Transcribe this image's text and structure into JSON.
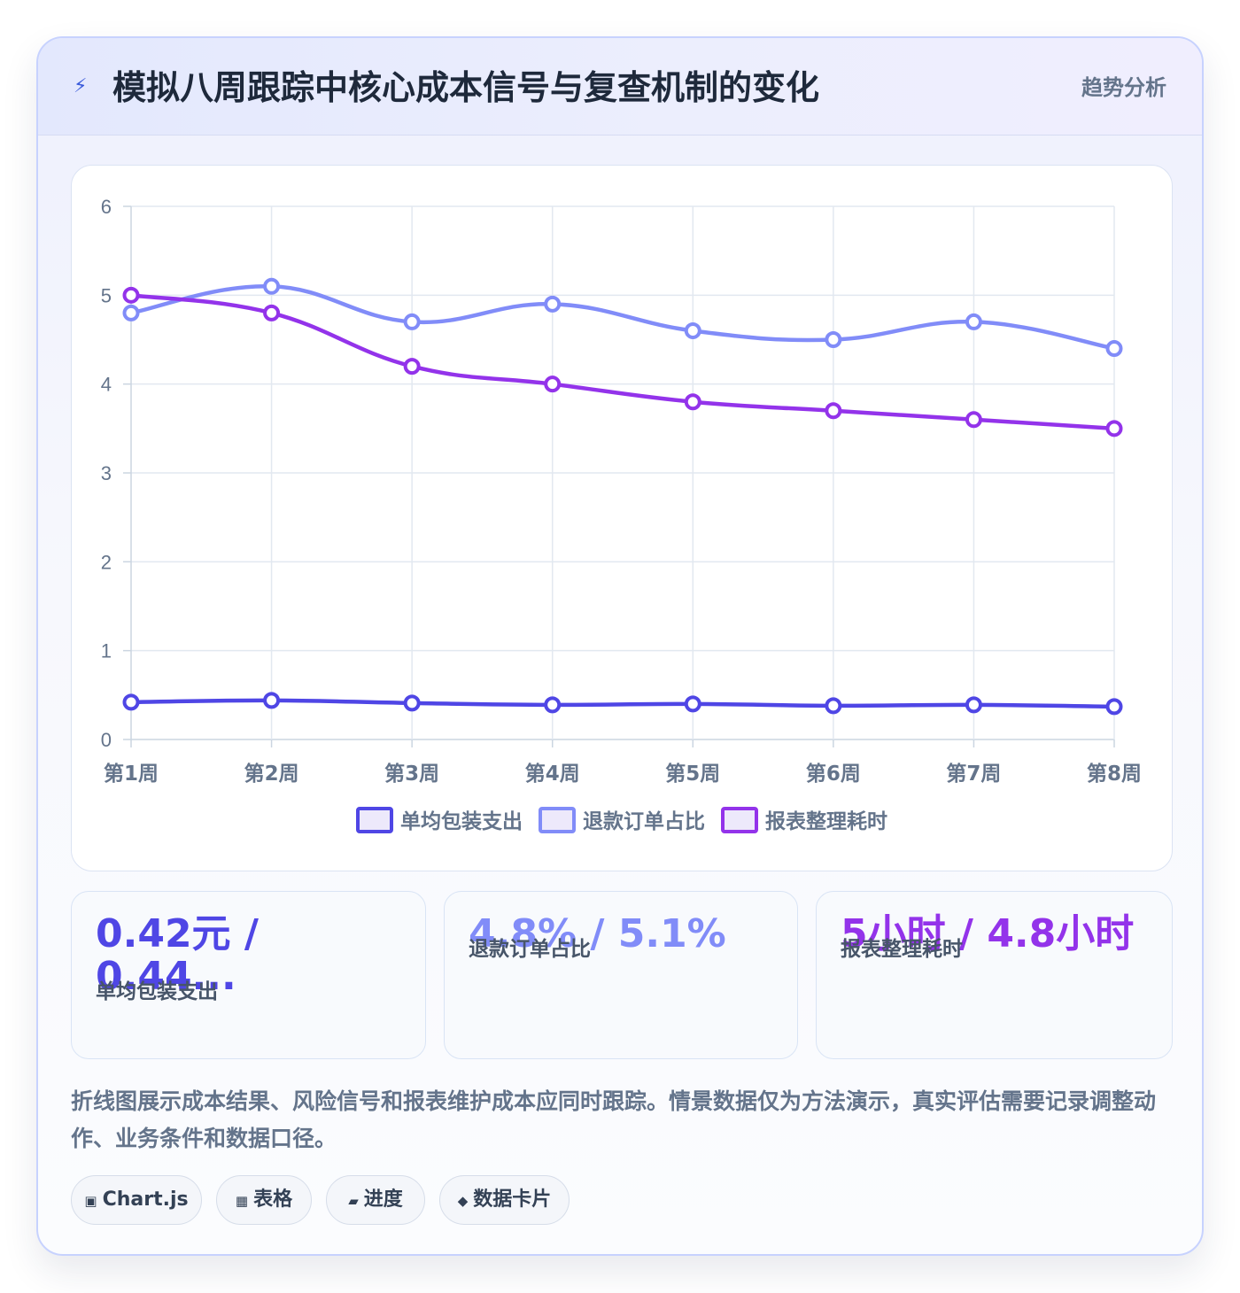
{
  "header": {
    "icon": "lightning-icon",
    "title": "模拟八周跟踪中核心成本信号与复查机制的变化",
    "tag": "趋势分析"
  },
  "chart_data": {
    "type": "line",
    "categories": [
      "第1周",
      "第2周",
      "第3周",
      "第4周",
      "第5周",
      "第6周",
      "第7周",
      "第8周"
    ],
    "series": [
      {
        "name": "单均包装支出",
        "color": "#4f46e5",
        "values": [
          0.42,
          0.44,
          0.41,
          0.39,
          0.4,
          0.38,
          0.39,
          0.37
        ]
      },
      {
        "name": "退款订单占比",
        "color": "#818cf8",
        "values": [
          4.8,
          5.1,
          4.7,
          4.9,
          4.6,
          4.5,
          4.7,
          4.4
        ]
      },
      {
        "name": "报表整理耗时",
        "color": "#9333ea",
        "values": [
          5.0,
          4.8,
          4.2,
          4.0,
          3.8,
          3.7,
          3.6,
          3.5
        ]
      }
    ],
    "yticks": [
      "0",
      "1",
      "2",
      "3",
      "4",
      "5",
      "6"
    ],
    "ylim": [
      0,
      6
    ],
    "grid": true,
    "legend_position": "bottom",
    "smooth": true
  },
  "stats": [
    {
      "value": "0.42元 / 0.44...",
      "label": "单均包装支出",
      "color": "#4f46e5"
    },
    {
      "value": "4.8% / 5.1%",
      "label": "退款订单占比",
      "color": "#818cf8"
    },
    {
      "value": "5小时 / 4.8小时",
      "label": "报表整理耗时",
      "color": "#9333ea"
    }
  ],
  "note": "折线图展示成本结果、风险信号和报表维护成本应同时跟踪。情景数据仅为方法演示，真实评估需要记录调整动作、业务条件和数据口径。",
  "chips": [
    {
      "icon": "chart-icon",
      "glyph": "▣",
      "label": "Chart.js"
    },
    {
      "icon": "table-icon",
      "glyph": "▦",
      "label": "表格"
    },
    {
      "icon": "progress-icon",
      "glyph": "▰",
      "label": "进度"
    },
    {
      "icon": "card-icon",
      "glyph": "◆",
      "label": "数据卡片"
    }
  ]
}
